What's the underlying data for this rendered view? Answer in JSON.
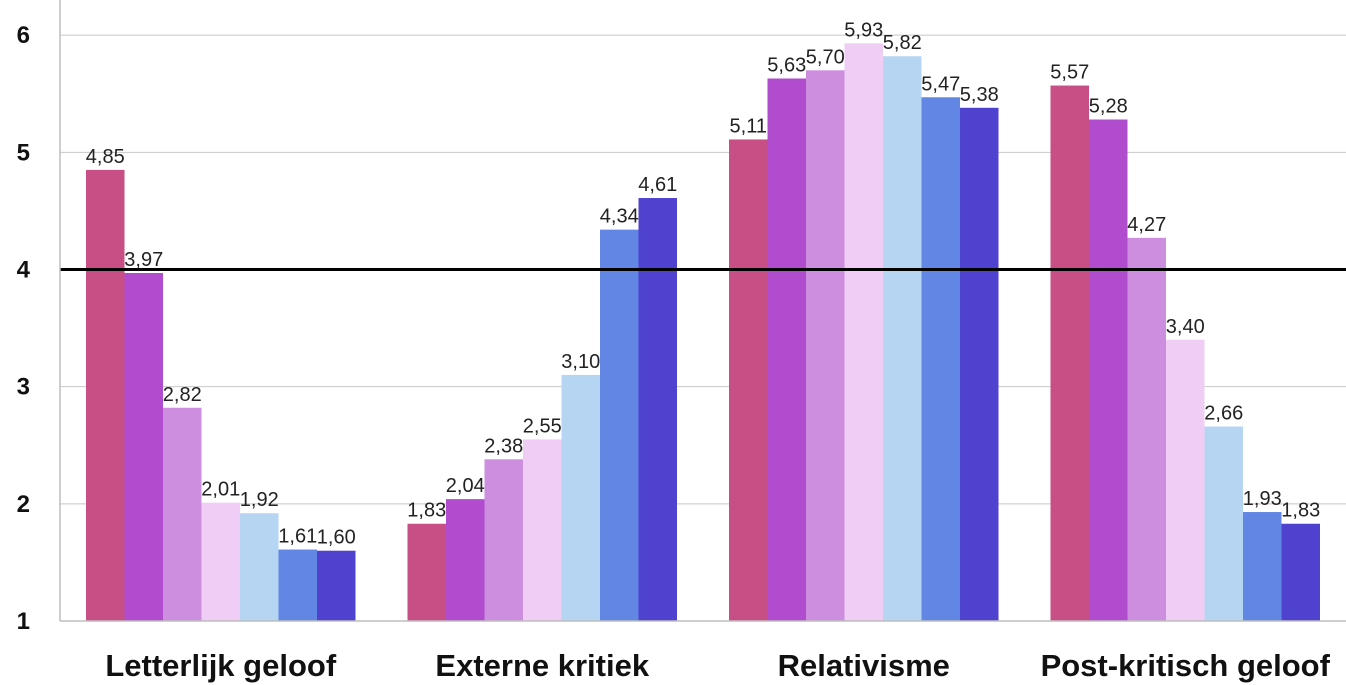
{
  "chart_data": {
    "type": "bar",
    "categories": [
      "Letterlijk geloof",
      "Externe kritiek",
      "Relativisme",
      "Post-kritisch geloof"
    ],
    "series": [
      {
        "values": [
          4.85,
          1.83,
          5.11,
          5.57
        ],
        "labels": [
          "4,85",
          "1,83",
          "5,11",
          "5,57"
        ],
        "color": "#c84f86"
      },
      {
        "values": [
          3.97,
          2.04,
          5.63,
          5.28
        ],
        "labels": [
          "3,97",
          "2,04",
          "5,63",
          "5,28"
        ],
        "color": "#b04ccd"
      },
      {
        "values": [
          2.82,
          2.38,
          5.7,
          4.27
        ],
        "labels": [
          "2,82",
          "2,38",
          "5,70",
          "4,27"
        ],
        "color": "#cd8ee0"
      },
      {
        "values": [
          2.01,
          2.55,
          5.93,
          3.4
        ],
        "labels": [
          "2,01",
          "2,55",
          "5,93",
          "3,40"
        ],
        "color": "#efcdf5"
      },
      {
        "values": [
          1.92,
          3.1,
          5.82,
          2.66
        ],
        "labels": [
          "1,92",
          "3,10",
          "5,82",
          "2,66"
        ],
        "color": "#b5d5f2"
      },
      {
        "values": [
          1.61,
          4.34,
          5.47,
          1.93
        ],
        "labels": [
          "1,61",
          "4,34",
          "5,47",
          "1,93"
        ],
        "color": "#6186e4"
      },
      {
        "values": [
          1.6,
          4.61,
          5.38,
          1.83
        ],
        "labels": [
          "1,60",
          "4,61",
          "5,38",
          "1,83"
        ],
        "color": "#4f42cf"
      }
    ],
    "yticks": [
      {
        "value": 1,
        "label": "1"
      },
      {
        "value": 2,
        "label": "2"
      },
      {
        "value": 3,
        "label": "3"
      },
      {
        "value": 4,
        "label": "4"
      },
      {
        "value": 5,
        "label": "5"
      },
      {
        "value": 6,
        "label": "6"
      }
    ],
    "ylim": [
      1,
      6.3
    ],
    "reference_line": 4,
    "title": "",
    "xlabel": "",
    "ylabel": "",
    "grid": true,
    "legend": "none"
  }
}
